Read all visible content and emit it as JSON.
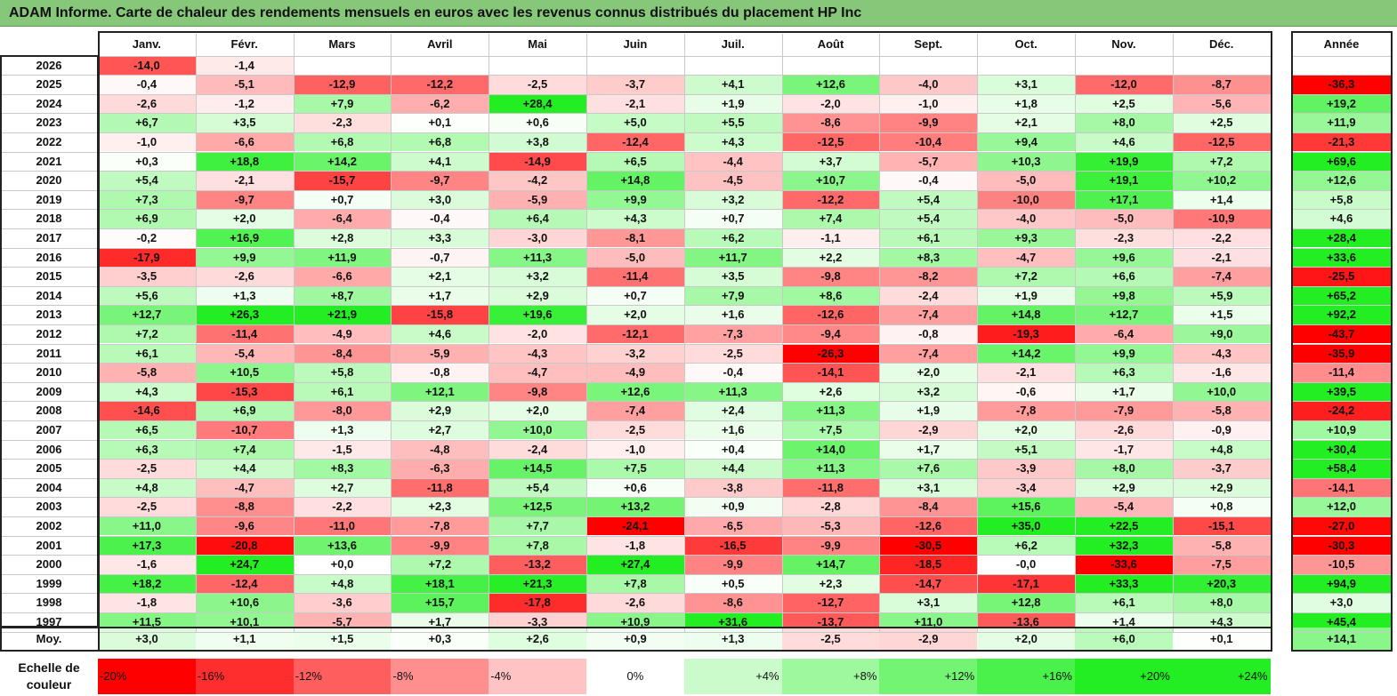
{
  "title": "ADAM Informe. Carte de chaleur des rendements mensuels en euros avec les revenus connus distribués du placement HP Inc",
  "chart_data": {
    "type": "heatmap",
    "title": "ADAM Informe. Carte de chaleur des rendements mensuels en euros avec les revenus connus distribués du placement HP Inc",
    "columns": [
      "Janv.",
      "Févr.",
      "Mars",
      "Avril",
      "Mai",
      "Juin",
      "Juil.",
      "Août",
      "Sept.",
      "Oct.",
      "Nov.",
      "Déc."
    ],
    "year_column": "Année",
    "rows": [
      {
        "year": "2026",
        "months": [
          "-14,0",
          "-1,4",
          "",
          "",
          "",
          "",
          "",
          "",
          "",
          "",
          "",
          ""
        ],
        "annual": ""
      },
      {
        "year": "2025",
        "months": [
          "-0,4",
          "-5,1",
          "-12,9",
          "-12,2",
          "-2,5",
          "-3,7",
          "+4,1",
          "+12,6",
          "-4,0",
          "+3,1",
          "-12,0",
          "-8,7"
        ],
        "annual": "-36,3"
      },
      {
        "year": "2024",
        "months": [
          "-2,6",
          "-1,2",
          "+7,9",
          "-6,2",
          "+28,4",
          "-2,1",
          "+1,9",
          "-2,0",
          "-1,0",
          "+1,8",
          "+2,5",
          "-5,6"
        ],
        "annual": "+19,2"
      },
      {
        "year": "2023",
        "months": [
          "+6,7",
          "+3,5",
          "-2,3",
          "+0,1",
          "+0,6",
          "+5,0",
          "+5,5",
          "-8,6",
          "-9,9",
          "+2,1",
          "+8,0",
          "+2,5"
        ],
        "annual": "+11,9"
      },
      {
        "year": "2022",
        "months": [
          "-1,0",
          "-6,6",
          "+6,8",
          "+6,8",
          "+3,8",
          "-12,4",
          "+4,3",
          "-12,5",
          "-10,4",
          "+9,4",
          "+4,6",
          "-12,5"
        ],
        "annual": "-21,3"
      },
      {
        "year": "2021",
        "months": [
          "+0,3",
          "+18,8",
          "+14,2",
          "+4,1",
          "-14,9",
          "+6,5",
          "-4,4",
          "+3,7",
          "-5,7",
          "+10,3",
          "+19,9",
          "+7,2"
        ],
        "annual": "+69,6"
      },
      {
        "year": "2020",
        "months": [
          "+5,4",
          "-2,1",
          "-15,7",
          "-9,7",
          "-4,2",
          "+14,8",
          "-4,5",
          "+10,7",
          "-0,4",
          "-5,0",
          "+19,1",
          "+10,2"
        ],
        "annual": "+12,6"
      },
      {
        "year": "2019",
        "months": [
          "+7,3",
          "-9,7",
          "+0,7",
          "+3,0",
          "-5,9",
          "+9,9",
          "+3,2",
          "-12,2",
          "+5,4",
          "-10,0",
          "+17,1",
          "+1,4"
        ],
        "annual": "+5,8"
      },
      {
        "year": "2018",
        "months": [
          "+6,9",
          "+2,0",
          "-6,4",
          "-0,4",
          "+6,4",
          "+4,3",
          "+0,7",
          "+7,4",
          "+5,4",
          "-4,0",
          "-5,0",
          "-10,9"
        ],
        "annual": "+4,6"
      },
      {
        "year": "2017",
        "months": [
          "-0,2",
          "+16,9",
          "+2,8",
          "+3,3",
          "-3,0",
          "-8,1",
          "+6,2",
          "-1,1",
          "+6,1",
          "+9,3",
          "-2,3",
          "-2,2"
        ],
        "annual": "+28,4"
      },
      {
        "year": "2016",
        "months": [
          "-17,9",
          "+9,9",
          "+11,9",
          "-0,7",
          "+11,3",
          "-5,0",
          "+11,7",
          "+2,2",
          "+8,3",
          "-4,7",
          "+9,6",
          "-2,1"
        ],
        "annual": "+33,6"
      },
      {
        "year": "2015",
        "months": [
          "-3,5",
          "-2,6",
          "-6,6",
          "+2,1",
          "+3,2",
          "-11,4",
          "+3,5",
          "-9,8",
          "-8,2",
          "+7,2",
          "+6,6",
          "-7,4"
        ],
        "annual": "-25,5"
      },
      {
        "year": "2014",
        "months": [
          "+5,6",
          "+1,3",
          "+8,7",
          "+1,7",
          "+2,9",
          "+0,7",
          "+7,9",
          "+8,6",
          "-2,4",
          "+1,9",
          "+9,8",
          "+5,9"
        ],
        "annual": "+65,2"
      },
      {
        "year": "2013",
        "months": [
          "+12,7",
          "+26,3",
          "+21,9",
          "-15,8",
          "+19,6",
          "+2,0",
          "+1,6",
          "-12,6",
          "-7,4",
          "+14,8",
          "+12,7",
          "+1,5"
        ],
        "annual": "+92,2"
      },
      {
        "year": "2012",
        "months": [
          "+7,2",
          "-11,4",
          "-4,9",
          "+4,6",
          "-2,0",
          "-12,1",
          "-7,3",
          "-9,4",
          "-0,8",
          "-19,3",
          "-6,4",
          "+9,0"
        ],
        "annual": "-43,7"
      },
      {
        "year": "2011",
        "months": [
          "+6,1",
          "-5,4",
          "-8,4",
          "-5,9",
          "-4,3",
          "-3,2",
          "-2,5",
          "-26,3",
          "-7,4",
          "+14,2",
          "+9,9",
          "-4,3"
        ],
        "annual": "-35,9"
      },
      {
        "year": "2010",
        "months": [
          "-5,8",
          "+10,5",
          "+5,8",
          "-0,8",
          "-4,7",
          "-4,9",
          "-0,4",
          "-14,1",
          "+2,0",
          "-2,1",
          "+6,3",
          "-1,6"
        ],
        "annual": "-11,4"
      },
      {
        "year": "2009",
        "months": [
          "+4,3",
          "-15,3",
          "+6,1",
          "+12,1",
          "-9,8",
          "+12,6",
          "+11,3",
          "+2,6",
          "+3,2",
          "-0,6",
          "+1,7",
          "+10,0"
        ],
        "annual": "+39,5"
      },
      {
        "year": "2008",
        "months": [
          "-14,6",
          "+6,9",
          "-8,0",
          "+2,9",
          "+2,0",
          "-7,4",
          "+2,4",
          "+11,3",
          "+1,9",
          "-7,8",
          "-7,9",
          "-5,8"
        ],
        "annual": "-24,2"
      },
      {
        "year": "2007",
        "months": [
          "+6,5",
          "-10,7",
          "+1,3",
          "+2,7",
          "+10,0",
          "-2,5",
          "+1,6",
          "+7,5",
          "-2,9",
          "+2,0",
          "-2,6",
          "-0,9"
        ],
        "annual": "+10,9"
      },
      {
        "year": "2006",
        "months": [
          "+6,3",
          "+7,4",
          "-1,5",
          "-4,8",
          "-2,4",
          "-1,0",
          "+0,4",
          "+14,0",
          "+1,7",
          "+5,1",
          "-1,7",
          "+4,8"
        ],
        "annual": "+30,4"
      },
      {
        "year": "2005",
        "months": [
          "-2,5",
          "+4,4",
          "+8,3",
          "-6,3",
          "+14,5",
          "+7,5",
          "+4,4",
          "+11,3",
          "+7,6",
          "-3,9",
          "+8,0",
          "-3,7"
        ],
        "annual": "+58,4"
      },
      {
        "year": "2004",
        "months": [
          "+4,8",
          "-4,7",
          "+2,7",
          "-11,8",
          "+5,4",
          "+0,6",
          "-3,8",
          "-11,8",
          "+3,1",
          "-3,4",
          "+2,9",
          "+2,9"
        ],
        "annual": "-14,1"
      },
      {
        "year": "2003",
        "months": [
          "-2,5",
          "-8,8",
          "-2,2",
          "+2,3",
          "+12,5",
          "+13,2",
          "+0,9",
          "-2,8",
          "-8,4",
          "+15,6",
          "-5,4",
          "+0,8"
        ],
        "annual": "+12,0"
      },
      {
        "year": "2002",
        "months": [
          "+11,0",
          "-9,6",
          "-11,0",
          "-7,8",
          "+7,7",
          "-24,1",
          "-6,5",
          "-5,3",
          "-12,6",
          "+35,0",
          "+22,5",
          "-15,1"
        ],
        "annual": "-27,0"
      },
      {
        "year": "2001",
        "months": [
          "+17,3",
          "-20,8",
          "+13,6",
          "-9,9",
          "+7,8",
          "-1,8",
          "-16,5",
          "-9,9",
          "-30,5",
          "+6,2",
          "+32,3",
          "-5,8"
        ],
        "annual": "-30,3"
      },
      {
        "year": "2000",
        "months": [
          "-1,6",
          "+24,7",
          "+0,0",
          "+7,2",
          "-13,2",
          "+27,4",
          "-9,9",
          "+14,7",
          "-18,5",
          "-0,0",
          "-33,6",
          "-7,5"
        ],
        "annual": "-10,5"
      },
      {
        "year": "1999",
        "months": [
          "+18,2",
          "-12,4",
          "+4,8",
          "+18,1",
          "+21,3",
          "+7,8",
          "+0,5",
          "+2,3",
          "-14,7",
          "-17,1",
          "+33,3",
          "+20,3"
        ],
        "annual": "+94,9"
      },
      {
        "year": "1998",
        "months": [
          "-1,8",
          "+10,6",
          "-3,6",
          "+15,7",
          "-17,8",
          "-2,6",
          "-8,6",
          "-12,7",
          "+3,1",
          "+12,8",
          "+6,1",
          "+8,0"
        ],
        "annual": "+3,0"
      },
      {
        "year": "1997",
        "months": [
          "+11,5",
          "+10,1",
          "-5,7",
          "+1,7",
          "-3,3",
          "+10,9",
          "+31,6",
          "-13,7",
          "+11,0",
          "-13,6",
          "+1,4",
          "+4,3"
        ],
        "annual": "+45,4"
      }
    ],
    "average": {
      "label": "Moy.",
      "months": [
        "+3,0",
        "+1,1",
        "+1,5",
        "+0,3",
        "+2,6",
        "+0,9",
        "+1,3",
        "-2,5",
        "-2,9",
        "+2,0",
        "+6,0",
        "+0,1"
      ],
      "annual": "+14,1"
    },
    "color_scale": {
      "label": "Echelle de couleur",
      "stops": [
        "-20%",
        "-16%",
        "-12%",
        "-8%",
        "-4%",
        "0%",
        "+4%",
        "+8%",
        "+12%",
        "+16%",
        "+20%",
        "+24%"
      ],
      "values": [
        -20,
        -16,
        -12,
        -8,
        -4,
        0,
        4,
        8,
        12,
        16,
        20,
        24
      ]
    },
    "colors": {
      "negative": "#ff0000",
      "neutral": "#ffffff",
      "positive": "#22ee22"
    }
  }
}
